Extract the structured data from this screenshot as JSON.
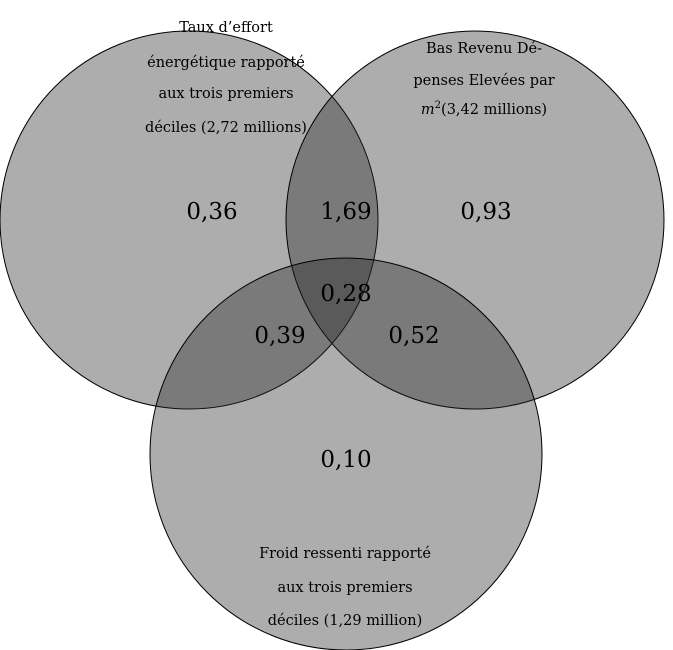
{
  "sets": {
    "taux_effort": {
      "line1": "Taux d’effort",
      "line2": "énergétique rapporté",
      "line3": "aux trois premiers",
      "line4": "déciles (2,72 millions)"
    },
    "bas_revenu": {
      "line1": "Bas Revenu Dé-",
      "line2": "penses Elevées par",
      "line3_var": "m",
      "line3_sup": "2",
      "line3_rest": "(3,42 millions)"
    },
    "froid": {
      "line1": "Froid ressenti rapporté",
      "line2": "aux trois premiers",
      "line3": "déciles (1,29 million)"
    }
  },
  "regions": {
    "taux_only": "0,36",
    "taux_bas": "1,69",
    "bas_only": "0,93",
    "all_three": "0,28",
    "taux_froid": "0,39",
    "bas_froid": "0,52",
    "froid_only": "0,10"
  },
  "colors": {
    "circle_fill": "#282828",
    "outline": "#000000"
  }
}
